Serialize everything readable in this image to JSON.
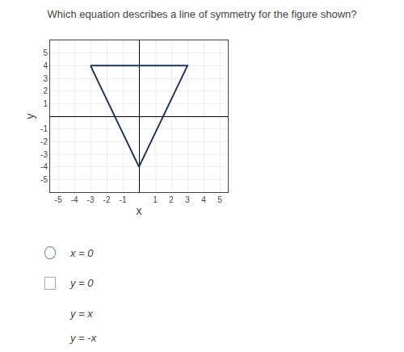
{
  "chart_data": {
    "type": "line",
    "title": "Which equation describes a line of symmetry for the figure shown?",
    "x": [
      -3,
      0,
      3,
      -3
    ],
    "values": [
      4,
      -4,
      4,
      4
    ],
    "color": "#223355",
    "xlabel": "x",
    "ylabel": "y",
    "xlim": [
      -5.5,
      5.5
    ],
    "ylim": [
      -6,
      6
    ],
    "xticks": [
      -5,
      -4,
      -3,
      -2,
      -1,
      1,
      2,
      3,
      4,
      5
    ],
    "yticks": [
      -5,
      -4,
      -3,
      -2,
      -1,
      1,
      2,
      3,
      4,
      5
    ],
    "grid": true,
    "annotations": [
      "x = 0",
      "y = 0",
      "y = x",
      "y = -x"
    ]
  }
}
